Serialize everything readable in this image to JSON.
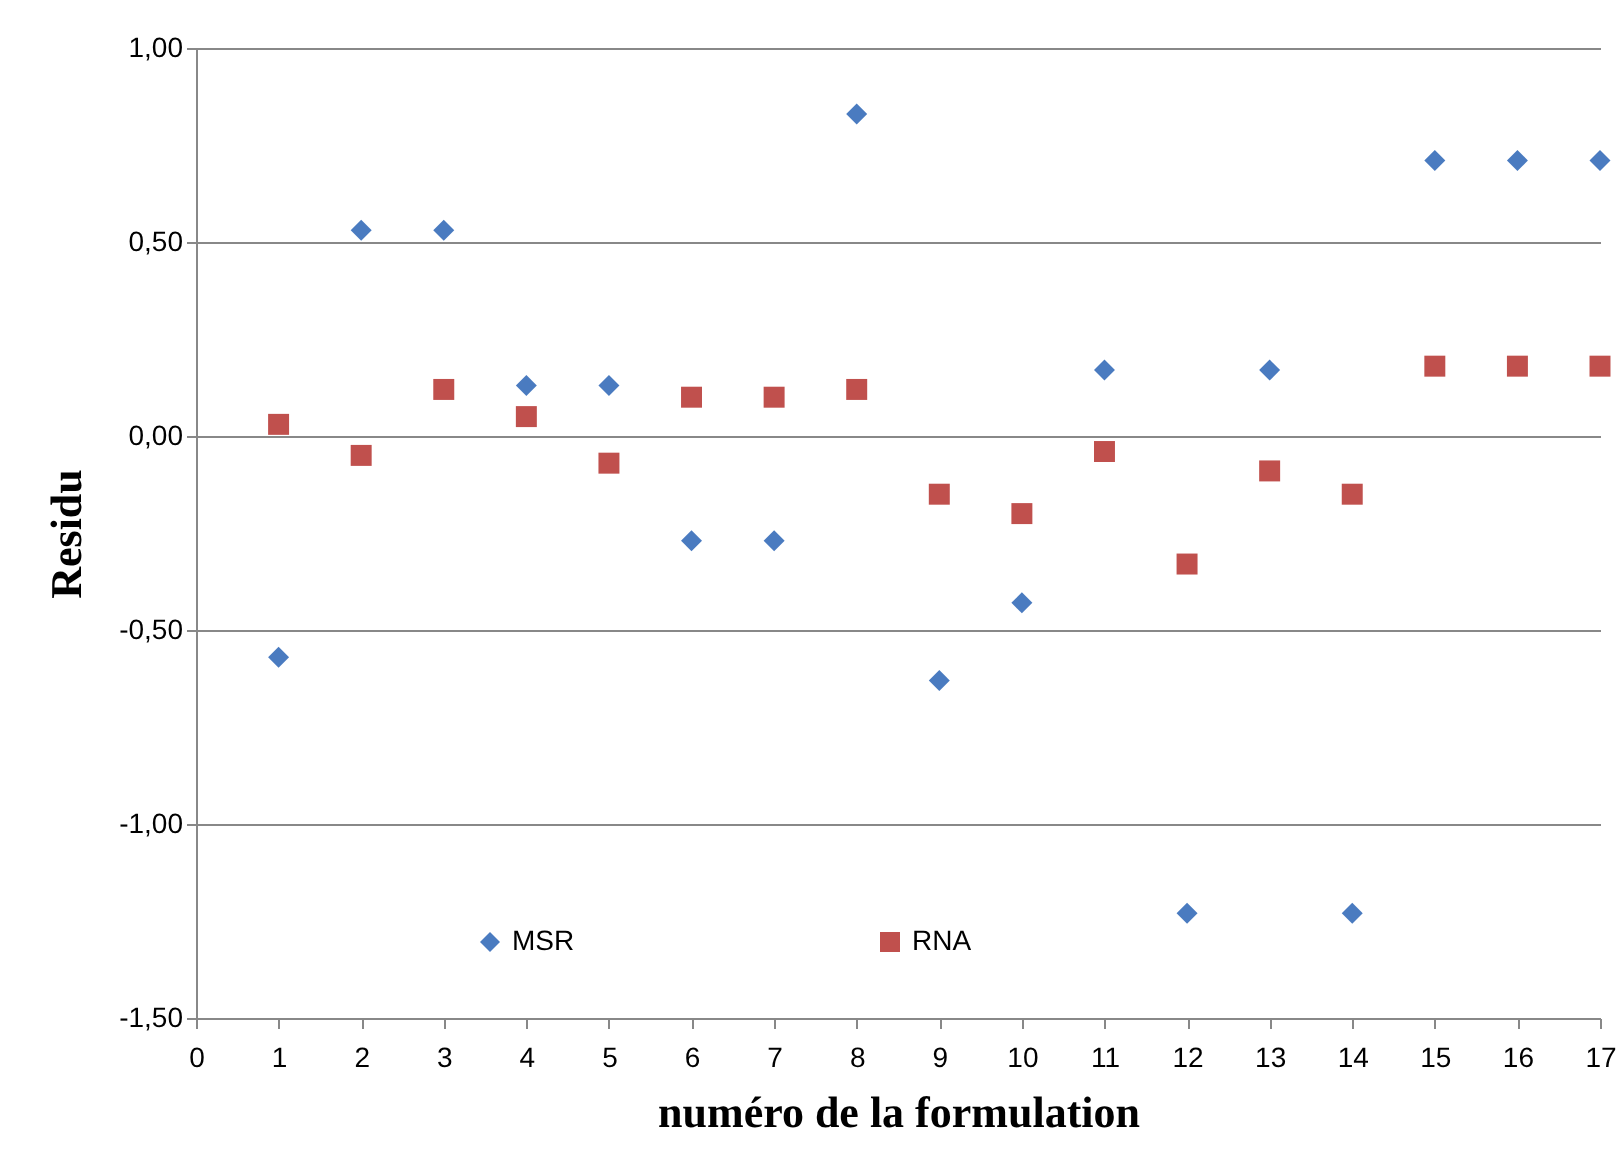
{
  "chart_data": {
    "type": "scatter",
    "xlabel": "numéro de la formulation",
    "ylabel": "Residu",
    "x": [
      1,
      2,
      3,
      4,
      5,
      6,
      7,
      8,
      9,
      10,
      11,
      12,
      13,
      14,
      15,
      16,
      17
    ],
    "series": [
      {
        "name": "MSR",
        "color": "#4a7bc0",
        "marker": "diamond",
        "values": [
          -0.57,
          0.53,
          0.53,
          0.13,
          0.13,
          -0.27,
          -0.27,
          0.83,
          -0.63,
          -0.43,
          0.17,
          -1.23,
          0.17,
          -1.23,
          0.71,
          0.71,
          0.71
        ]
      },
      {
        "name": "RNA",
        "color": "#c0504d",
        "marker": "square",
        "values": [
          0.03,
          -0.05,
          0.12,
          0.05,
          -0.07,
          0.1,
          0.1,
          0.12,
          -0.15,
          -0.2,
          -0.04,
          -0.33,
          -0.09,
          -0.15,
          0.18,
          0.18,
          0.18
        ]
      }
    ],
    "xlim": [
      0,
      17
    ],
    "xticks": [
      0,
      1,
      2,
      3,
      4,
      5,
      6,
      7,
      8,
      9,
      10,
      11,
      12,
      13,
      14,
      15,
      16,
      17
    ],
    "ylim": [
      -1.5,
      1
    ],
    "yticks": [
      {
        "value": -1.5,
        "label": "-1,50"
      },
      {
        "value": -1,
        "label": "-1,00"
      },
      {
        "value": -0.5,
        "label": "-0,50"
      },
      {
        "value": 0,
        "label": "0,00"
      },
      {
        "value": 0.5,
        "label": "0,50"
      },
      {
        "value": 1,
        "label": "1,00"
      }
    ],
    "grid": "y",
    "legend": "bottom"
  }
}
